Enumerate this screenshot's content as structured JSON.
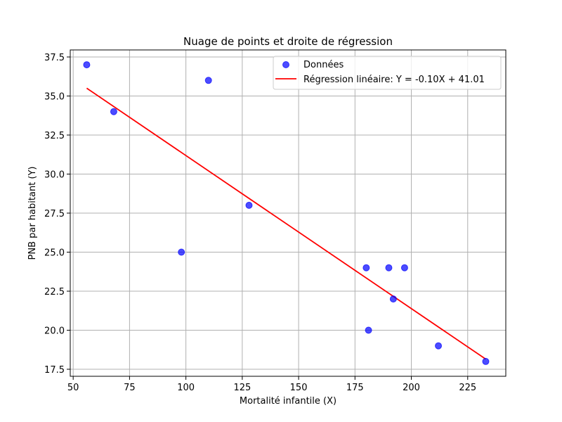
{
  "chart_data": {
    "type": "scatter",
    "title": "Nuage de points et droite de régression",
    "xlabel": "Mortalité infantile (X)",
    "ylabel": "PNB par habitant (Y)",
    "xlim": [
      48.7,
      241.9
    ],
    "ylim": [
      17.05,
      37.95
    ],
    "xticks": [
      50,
      75,
      100,
      125,
      150,
      175,
      200,
      225
    ],
    "yticks": [
      17.5,
      20.0,
      22.5,
      25.0,
      27.5,
      30.0,
      32.5,
      35.0,
      37.5
    ],
    "xtick_labels": [
      "50",
      "75",
      "100",
      "125",
      "150",
      "175",
      "200",
      "225"
    ],
    "ytick_labels": [
      "17.5",
      "20.0",
      "22.5",
      "25.0",
      "27.5",
      "30.0",
      "32.5",
      "35.0",
      "37.5"
    ],
    "grid": true,
    "legend_position": "top-right",
    "series": [
      {
        "name": "Données",
        "kind": "scatter",
        "color": "#0000ff",
        "x": [
          56,
          68,
          98,
          110,
          128,
          180,
          181,
          190,
          192,
          197,
          212,
          233
        ],
        "y": [
          37,
          34,
          25,
          36,
          28,
          24,
          20,
          24,
          22,
          24,
          19,
          18
        ]
      },
      {
        "name": "Régression linéaire: Y = -0.10X + 41.01",
        "kind": "line",
        "color": "#ff0000",
        "x": [
          56,
          233
        ],
        "y": [
          35.5,
          18.15
        ]
      }
    ]
  }
}
